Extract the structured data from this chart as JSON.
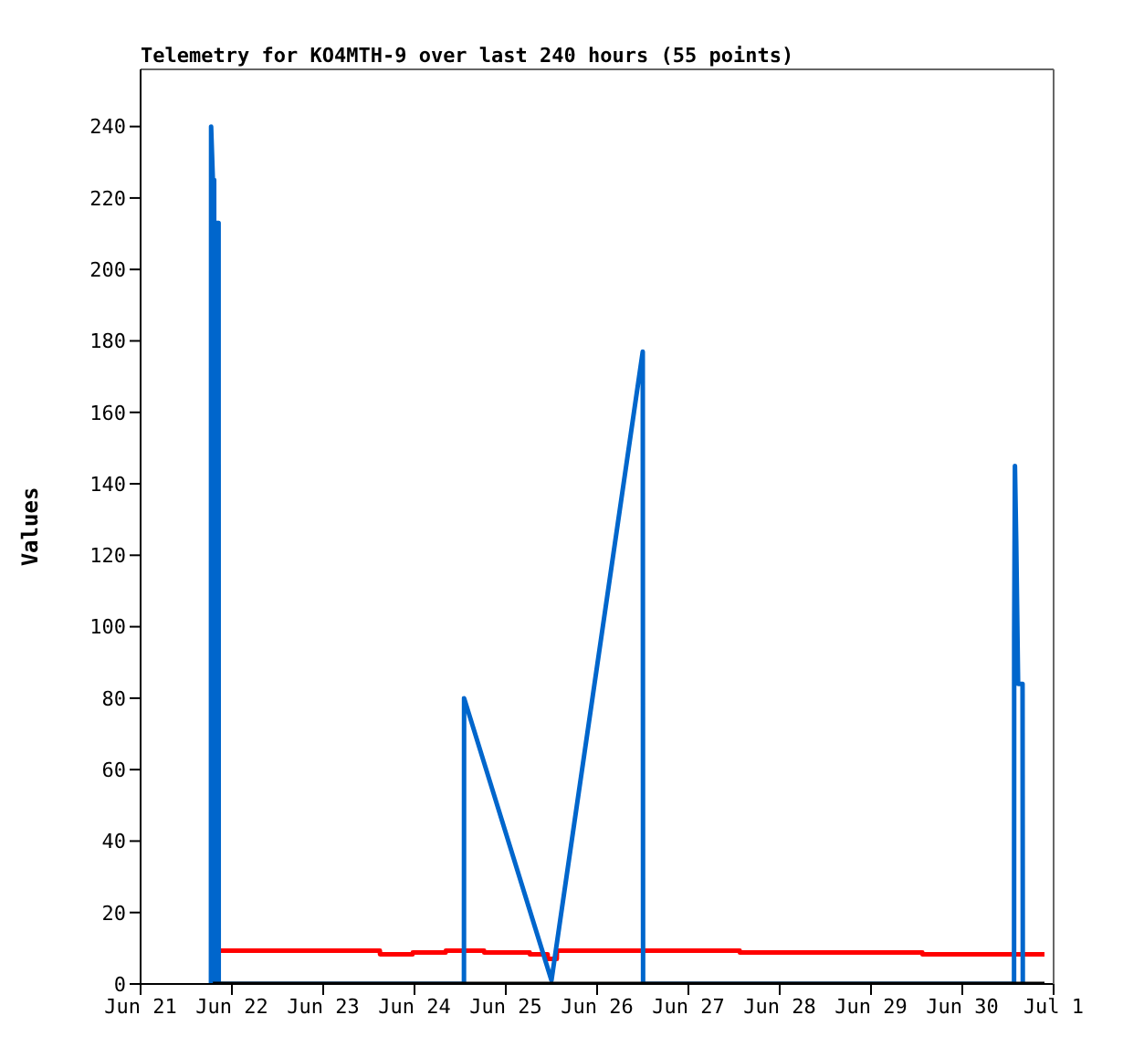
{
  "chart_data": {
    "type": "line",
    "title": "Telemetry for KO4MTH-9 over last 240 hours (55 points)",
    "ylabel": "Values",
    "xlim": [
      "--06-21",
      "--07-01"
    ],
    "xticks": [
      {
        "value": "--06-21",
        "label": "Jun 21"
      },
      {
        "value": "--06-22",
        "label": "Jun 22"
      },
      {
        "value": "--06-23",
        "label": "Jun 23"
      },
      {
        "value": "--06-24",
        "label": "Jun 24"
      },
      {
        "value": "--06-25",
        "label": "Jun 25"
      },
      {
        "value": "--06-26",
        "label": "Jun 26"
      },
      {
        "value": "--06-27",
        "label": "Jun 27"
      },
      {
        "value": "--06-28",
        "label": "Jun 28"
      },
      {
        "value": "--06-29",
        "label": "Jun 29"
      },
      {
        "value": "--06-30",
        "label": "Jun 30"
      },
      {
        "value": "--07-01",
        "label": "Jul 1"
      }
    ],
    "ylim": [
      0,
      256
    ],
    "yticks": [
      0,
      20,
      40,
      60,
      80,
      100,
      120,
      140,
      160,
      180,
      200,
      220,
      240
    ],
    "marker": "none",
    "line_style": "solid",
    "series": [
      {
        "color": "#ff0000",
        "x": [
          "--06-21T21:00",
          "--06-23T14:54",
          "--06-23T14:56",
          "--06-23T23:30",
          "--06-23T23:32",
          "--06-24T08:12",
          "--06-24T08:14",
          "--06-24T18:18",
          "--06-24T18:20",
          "--06-25T06:18",
          "--06-25T06:20",
          "--06-25T11:00",
          "--06-25T11:02",
          "--06-25T13:24",
          "--06-25T13:26",
          "--06-27T13:30",
          "--06-27T13:32",
          "--06-29T13:30",
          "--06-29T13:32",
          "--06-30T21:36"
        ],
        "values": [
          9.3,
          9.3,
          8.3,
          8.3,
          8.8,
          8.8,
          9.3,
          9.3,
          8.8,
          8.8,
          8.3,
          8.3,
          7,
          7,
          9.3,
          9.3,
          8.8,
          8.8,
          8.3,
          8.3
        ]
      },
      {
        "color": "#0066cc",
        "x": [
          "--06-21T18:30",
          "--06-21T18:32",
          "--06-21T19:00",
          "--06-21T19:20",
          "--06-21T19:22",
          "--06-21T19:50",
          "--06-21T19:52",
          "--06-21T20:30",
          "--06-21T20:32",
          "--06-24T13:00",
          "--06-24T13:02",
          "--06-25T12:00",
          "--06-26T12:00",
          "--06-26T12:05",
          "--06-30T13:36",
          "--06-30T13:38",
          "--06-30T13:50",
          "--06-30T14:10",
          "--06-30T14:40",
          "--06-30T15:50",
          "--06-30T15:54"
        ],
        "values": [
          0,
          240,
          225,
          225,
          0,
          0,
          213,
          213,
          0,
          0,
          80,
          1,
          177,
          0,
          0,
          97,
          145,
          124,
          84,
          84,
          0
        ]
      },
      {
        "color": "#000000",
        "x": [
          "--06-21T19:00",
          "--06-30T21:36"
        ],
        "values": [
          0,
          0
        ]
      }
    ]
  }
}
